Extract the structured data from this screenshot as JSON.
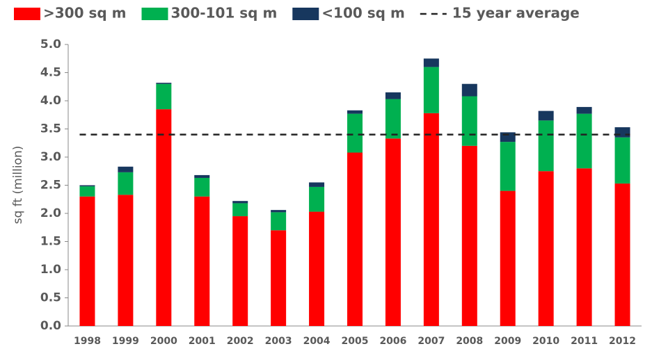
{
  "chart_data": {
    "type": "stacked_bar",
    "y_label": "sq ft (million)",
    "categories": [
      "1998",
      "1999",
      "2000",
      "2001",
      "2002",
      "2003",
      "2004",
      "2005",
      "2006",
      "2007",
      "2008",
      "2009",
      "2010",
      "2011",
      "2012"
    ],
    "series": [
      {
        "name": ">300 sq m",
        "color": "#ff0000",
        "values": [
          2.3,
          2.33,
          3.85,
          2.3,
          1.95,
          1.7,
          2.03,
          3.08,
          3.33,
          3.78,
          3.2,
          2.4,
          2.75,
          2.8,
          2.53
        ]
      },
      {
        "name": "300-101 sq m",
        "color": "#00b050",
        "values": [
          0.18,
          0.4,
          0.45,
          0.33,
          0.23,
          0.32,
          0.44,
          0.69,
          0.7,
          0.82,
          0.88,
          0.87,
          0.9,
          0.97,
          0.82
        ]
      },
      {
        "name": "<100 sq m",
        "color": "#17375e",
        "values": [
          0.02,
          0.1,
          0.02,
          0.05,
          0.04,
          0.04,
          0.08,
          0.06,
          0.12,
          0.15,
          0.22,
          0.17,
          0.17,
          0.12,
          0.18
        ]
      }
    ],
    "average": {
      "name": "15 year average",
      "value": 3.4,
      "color": "#222222"
    },
    "ylim": [
      0,
      5
    ],
    "yticks": [
      {
        "value": 0,
        "label": "0.0"
      },
      0.5,
      {
        "value": 1,
        "label": "1.0"
      },
      1.5,
      {
        "value": 2,
        "label": "2.0"
      },
      2.5,
      {
        "value": 3,
        "label": "3.0"
      },
      3.5,
      {
        "value": 4,
        "label": "4.0"
      },
      4.5,
      {
        "value": 5,
        "label": "5.0"
      }
    ],
    "legend": "top"
  }
}
